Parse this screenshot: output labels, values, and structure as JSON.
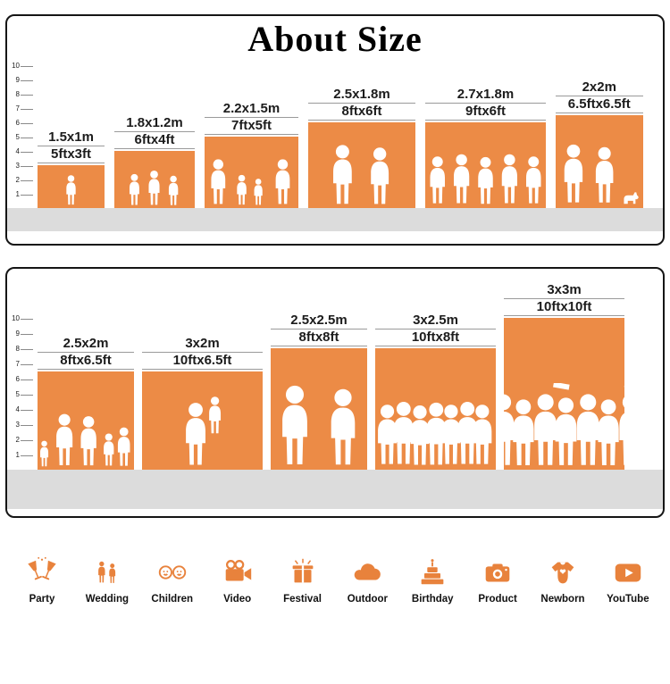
{
  "title": "About Size",
  "colors": {
    "accent": "#E8823C",
    "block": "#EC8B46",
    "floor": "#DCDCDC"
  },
  "panels": [
    {
      "unit_w": 15,
      "unit_h": 16,
      "scale": [
        10,
        9,
        8,
        7,
        6,
        5,
        4,
        3,
        2,
        1
      ],
      "items": [
        {
          "m": "1.5x1m",
          "ft": "5ftx3ft",
          "w_ft": 5,
          "h_ft": 3
        },
        {
          "m": "1.8x1.2m",
          "ft": "6ftx4ft",
          "w_ft": 6,
          "h_ft": 4
        },
        {
          "m": "2.2x1.5m",
          "ft": "7ftx5ft",
          "w_ft": 7,
          "h_ft": 5
        },
        {
          "m": "2.5x1.8m",
          "ft": "8ftx6ft",
          "w_ft": 8,
          "h_ft": 6
        },
        {
          "m": "2.7x1.8m",
          "ft": "9ftx6ft",
          "w_ft": 9,
          "h_ft": 6
        },
        {
          "m": "2x2m",
          "ft": "6.5ftx6.5ft",
          "w_ft": 6.5,
          "h_ft": 6.5
        }
      ]
    },
    {
      "unit_w": 13.5,
      "unit_h": 17,
      "scale": [
        10,
        9,
        8,
        7,
        6,
        5,
        4,
        3,
        2,
        1
      ],
      "items": [
        {
          "m": "2.5x2m",
          "ft": "8ftx6.5ft",
          "w_ft": 8,
          "h_ft": 6.5
        },
        {
          "m": "3x2m",
          "ft": "10ftx6.5ft",
          "w_ft": 10,
          "h_ft": 6.5
        },
        {
          "m": "2.5x2.5m",
          "ft": "8ftx8ft",
          "w_ft": 8,
          "h_ft": 8
        },
        {
          "m": "3x2.5m",
          "ft": "10ftx8ft",
          "w_ft": 10,
          "h_ft": 8
        },
        {
          "m": "3x3m",
          "ft": "10ftx10ft",
          "w_ft": 10,
          "h_ft": 10
        }
      ]
    }
  ],
  "categories": [
    {
      "label": "Party",
      "icon": "party-glasses-icon"
    },
    {
      "label": "Wedding",
      "icon": "wedding-couple-icon"
    },
    {
      "label": "Children",
      "icon": "children-faces-icon"
    },
    {
      "label": "Video",
      "icon": "video-camera-icon"
    },
    {
      "label": "Festival",
      "icon": "gift-fireworks-icon"
    },
    {
      "label": "Outdoor",
      "icon": "cloud-icon"
    },
    {
      "label": "Birthday",
      "icon": "birthday-cake-icon"
    },
    {
      "label": "Product",
      "icon": "photo-camera-icon"
    },
    {
      "label": "Newborn",
      "icon": "baby-onesie-icon"
    },
    {
      "label": "YouTube",
      "icon": "play-button-icon"
    }
  ]
}
